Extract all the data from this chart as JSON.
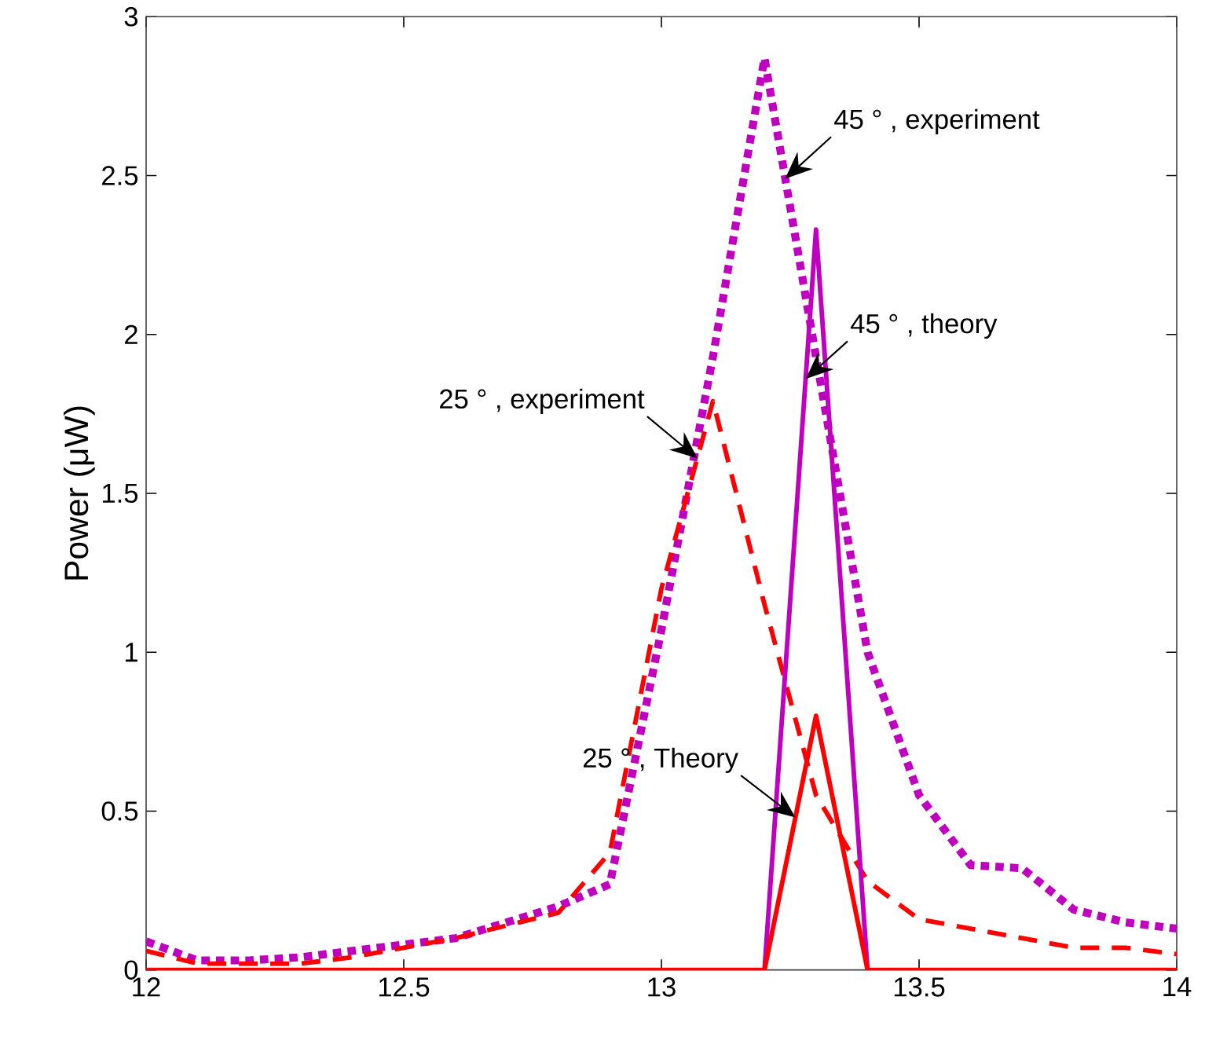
{
  "chart_data": {
    "type": "line",
    "ylabel": "Power (μW)",
    "x": [
      12,
      12.1,
      12.2,
      12.3,
      12.4,
      12.5,
      12.6,
      12.7,
      12.8,
      12.9,
      13,
      13.1,
      13.2,
      13.3,
      13.4,
      13.5,
      13.6,
      13.7,
      13.8,
      13.9,
      14
    ],
    "series": [
      {
        "color": "#bf00bf",
        "line_style": "dotted",
        "values": [
          0.09,
          0.03,
          0.03,
          0.04,
          0.06,
          0.08,
          0.1,
          0.15,
          0.2,
          0.27,
          1.07,
          1.93,
          2.87,
          1.93,
          1.0,
          0.55,
          0.33,
          0.32,
          0.19,
          0.15,
          0.13
        ]
      },
      {
        "color": "#ff0000",
        "line_style": "dashed",
        "values": [
          0.06,
          0.02,
          0.02,
          0.02,
          0.04,
          0.07,
          0.1,
          0.14,
          0.18,
          0.37,
          1.2,
          1.79,
          1.15,
          0.55,
          0.28,
          0.16,
          0.13,
          0.1,
          0.07,
          0.07,
          0.05
        ]
      },
      {
        "color": "#bf00bf",
        "line_style": "solid",
        "values": [
          null,
          null,
          null,
          null,
          null,
          null,
          null,
          null,
          null,
          null,
          null,
          null,
          0,
          2.33,
          0,
          null,
          null,
          null,
          null,
          null,
          null
        ]
      },
      {
        "color": "#ff0000",
        "line_style": "solid",
        "values": [
          0,
          0,
          0,
          0,
          0,
          0,
          0,
          0,
          0,
          0,
          0,
          0,
          0,
          0.8,
          0,
          0,
          0,
          0,
          0,
          0,
          0
        ]
      }
    ],
    "annotations": [
      {
        "text": "45 ° , experiment",
        "x": 13.24,
        "y": 2.49
      },
      {
        "text": "45 ° , theory",
        "x": 13.28,
        "y": 1.86
      },
      {
        "text": "25 ° , experiment",
        "x": 13.07,
        "y": 1.61
      },
      {
        "text": "25 ° , Theory",
        "x": 13.26,
        "y": 0.48
      }
    ],
    "xlim": [
      12,
      14
    ],
    "ylim": [
      0,
      3
    ],
    "xticks": [
      12,
      12.5,
      13,
      13.5,
      14
    ],
    "yticks": [
      0,
      0.5,
      1,
      1.5,
      2,
      2.5,
      3
    ],
    "grid": false
  }
}
